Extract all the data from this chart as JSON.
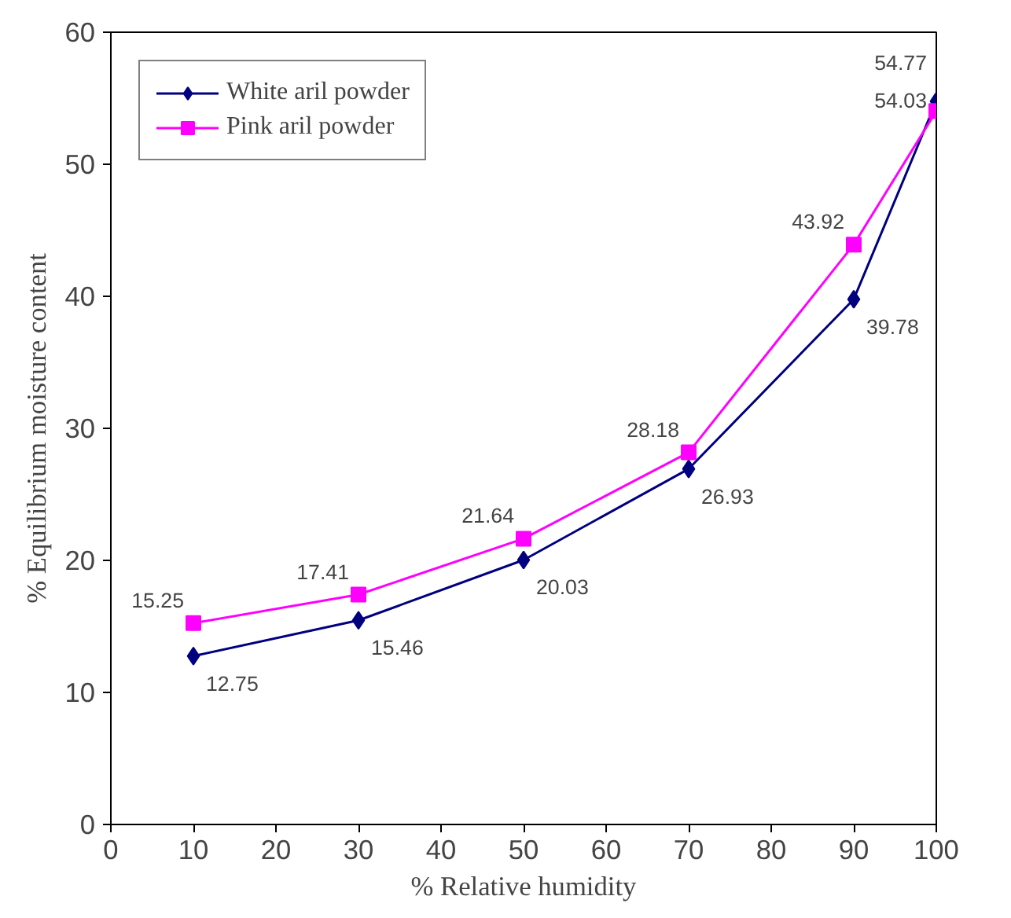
{
  "chart_data": {
    "type": "line",
    "xlabel": "% Relative humidity",
    "ylabel": "% Equilibrium moisture content",
    "x": [
      10,
      30,
      50,
      70,
      90,
      100
    ],
    "series": [
      {
        "name": "White aril powder",
        "color": "#000080",
        "marker": "diamond",
        "values": [
          12.75,
          15.46,
          20.03,
          26.93,
          39.78,
          54.77
        ]
      },
      {
        "name": "Pink aril powder",
        "color": "#ff00ff",
        "marker": "square",
        "values": [
          15.25,
          17.41,
          21.64,
          28.18,
          43.92,
          54.03
        ]
      }
    ],
    "xlim": [
      0,
      100
    ],
    "xticks": [
      0,
      10,
      20,
      30,
      40,
      50,
      60,
      70,
      80,
      90,
      100
    ],
    "ylim": [
      0,
      60
    ],
    "yticks": [
      0,
      10,
      20,
      30,
      40,
      50,
      60
    ],
    "grid": false,
    "legend": "top left",
    "data_labels": true
  }
}
